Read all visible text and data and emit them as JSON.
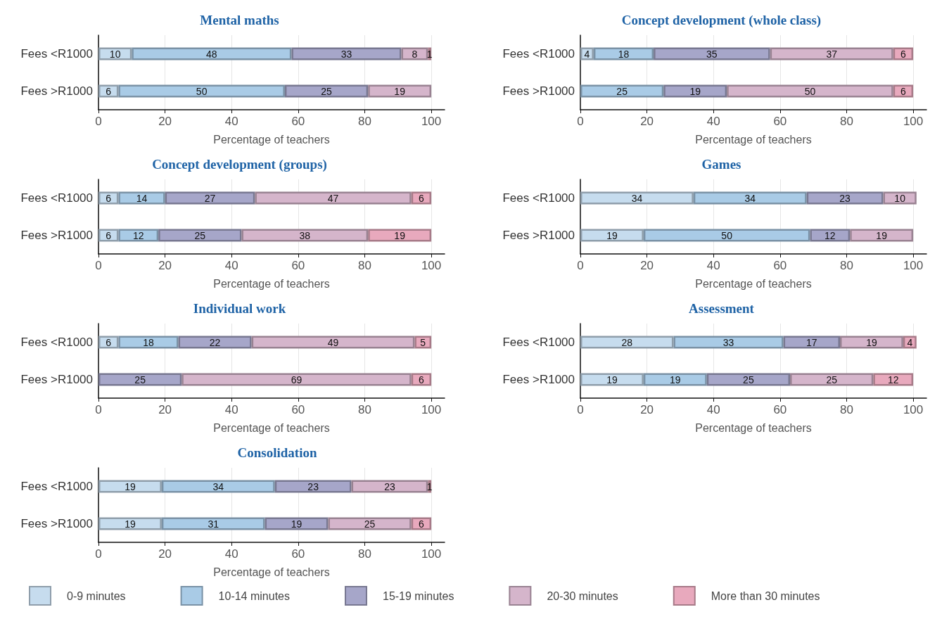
{
  "chart_data": [
    {
      "type": "bar",
      "orientation": "horizontal",
      "stacked": true,
      "title": "Mental maths",
      "xlabel": "Percentage of teachers",
      "categories": [
        "Fees <R1000",
        "Fees >R1000"
      ],
      "xlim": [
        0,
        104
      ],
      "xticks": [
        0,
        20,
        40,
        60,
        80,
        100
      ],
      "grid": "x",
      "data_labels": true,
      "series": [
        {
          "color": "#c6dcee",
          "values": [
            10,
            6
          ]
        },
        {
          "color": "#a9cbe6",
          "values": [
            48,
            50
          ]
        },
        {
          "color": "#a6a6c9",
          "values": [
            33,
            25
          ]
        },
        {
          "color": "#d5b5cb",
          "values": [
            8,
            19
          ]
        },
        {
          "color": "#e8a9bd",
          "values": [
            1,
            null
          ]
        }
      ]
    },
    {
      "type": "bar",
      "orientation": "horizontal",
      "stacked": true,
      "title": "Concept development (whole class)",
      "xlabel": "Percentage of teachers",
      "categories": [
        "Fees <R1000",
        "Fees >R1000"
      ],
      "xlim": [
        0,
        104
      ],
      "xticks": [
        0,
        20,
        40,
        60,
        80,
        100
      ],
      "grid": "x",
      "data_labels": true,
      "series": [
        {
          "color": "#c6dcee",
          "values": [
            4,
            null
          ]
        },
        {
          "color": "#a9cbe6",
          "values": [
            18,
            25
          ]
        },
        {
          "color": "#a6a6c9",
          "values": [
            35,
            19
          ]
        },
        {
          "color": "#d5b5cb",
          "values": [
            37,
            50
          ]
        },
        {
          "color": "#e8a9bd",
          "values": [
            6,
            6
          ]
        }
      ]
    },
    {
      "type": "bar",
      "orientation": "horizontal",
      "stacked": true,
      "title": "Concept development (groups)",
      "xlabel": "Percentage of teachers",
      "categories": [
        "Fees <R1000",
        "Fees >R1000"
      ],
      "xlim": [
        0,
        104
      ],
      "xticks": [
        0,
        20,
        40,
        60,
        80,
        100
      ],
      "grid": "x",
      "data_labels": true,
      "series": [
        {
          "color": "#c6dcee",
          "values": [
            6,
            6
          ]
        },
        {
          "color": "#a9cbe6",
          "values": [
            14,
            12
          ]
        },
        {
          "color": "#a6a6c9",
          "values": [
            27,
            25
          ]
        },
        {
          "color": "#d5b5cb",
          "values": [
            47,
            38
          ]
        },
        {
          "color": "#e8a9bd",
          "values": [
            6,
            19
          ]
        }
      ]
    },
    {
      "type": "bar",
      "orientation": "horizontal",
      "stacked": true,
      "title": "Games",
      "xlabel": "Percentage of teachers",
      "categories": [
        "Fees <R1000",
        "Fees >R1000"
      ],
      "xlim": [
        0,
        104
      ],
      "xticks": [
        0,
        20,
        40,
        60,
        80,
        100
      ],
      "grid": "x",
      "data_labels": true,
      "series": [
        {
          "color": "#c6dcee",
          "values": [
            34,
            19
          ]
        },
        {
          "color": "#a9cbe6",
          "values": [
            34,
            50
          ]
        },
        {
          "color": "#a6a6c9",
          "values": [
            23,
            12
          ]
        },
        {
          "color": "#d5b5cb",
          "values": [
            10,
            19
          ]
        },
        {
          "color": "#e8a9bd",
          "values": [
            null,
            null
          ]
        }
      ]
    },
    {
      "type": "bar",
      "orientation": "horizontal",
      "stacked": true,
      "title": "Individual work",
      "xlabel": "Percentage of teachers",
      "categories": [
        "Fees <R1000",
        "Fees >R1000"
      ],
      "xlim": [
        0,
        104
      ],
      "xticks": [
        0,
        20,
        40,
        60,
        80,
        100
      ],
      "grid": "x",
      "data_labels": true,
      "series": [
        {
          "color": "#c6dcee",
          "values": [
            6,
            null
          ]
        },
        {
          "color": "#a9cbe6",
          "values": [
            18,
            null
          ]
        },
        {
          "color": "#a6a6c9",
          "values": [
            22,
            25
          ]
        },
        {
          "color": "#d5b5cb",
          "values": [
            49,
            69
          ]
        },
        {
          "color": "#e8a9bd",
          "values": [
            5,
            6
          ]
        }
      ]
    },
    {
      "type": "bar",
      "orientation": "horizontal",
      "stacked": true,
      "title": "Assessment",
      "xlabel": "Percentage of teachers",
      "categories": [
        "Fees <R1000",
        "Fees >R1000"
      ],
      "xlim": [
        0,
        104
      ],
      "xticks": [
        0,
        20,
        40,
        60,
        80,
        100
      ],
      "grid": "x",
      "data_labels": true,
      "series": [
        {
          "color": "#c6dcee",
          "values": [
            28,
            19
          ]
        },
        {
          "color": "#a9cbe6",
          "values": [
            33,
            19
          ]
        },
        {
          "color": "#a6a6c9",
          "values": [
            17,
            25
          ]
        },
        {
          "color": "#d5b5cb",
          "values": [
            19,
            25
          ]
        },
        {
          "color": "#e8a9bd",
          "values": [
            4,
            12
          ]
        }
      ]
    },
    {
      "type": "bar",
      "orientation": "horizontal",
      "stacked": true,
      "title": "Consolidation",
      "xlabel": "Percentage of teachers",
      "categories": [
        "Fees <R1000",
        "Fees >R1000"
      ],
      "xlim": [
        0,
        104
      ],
      "xticks": [
        0,
        20,
        40,
        60,
        80,
        100
      ],
      "grid": "x",
      "data_labels": true,
      "legend": "bottom",
      "series": [
        {
          "name": "0-9 minutes",
          "color": "#c6dcee",
          "values": [
            19,
            19
          ]
        },
        {
          "name": "10-14 minutes",
          "color": "#a9cbe6",
          "values": [
            34,
            31
          ]
        },
        {
          "name": "15-19 minutes",
          "color": "#a6a6c9",
          "values": [
            23,
            19
          ]
        },
        {
          "name": "20-30 minutes",
          "color": "#d5b5cb",
          "values": [
            23,
            25
          ]
        },
        {
          "name": "More than 30 minutes",
          "color": "#e8a9bd",
          "values": [
            1,
            6
          ]
        }
      ]
    }
  ]
}
